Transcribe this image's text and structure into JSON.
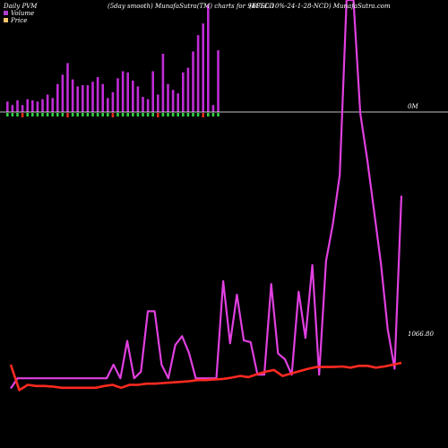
{
  "header": {
    "left": "Daily PVM",
    "middle": "(5day smooth) MunafaSutra(TM) charts for 94CLCD",
    "right": "(EFSL-10%-24-1-28-NCD) MunafaSutra.com"
  },
  "legend": {
    "volume_label": "Volume",
    "price_label": "Price",
    "volume_color": "#b03bd0",
    "price_color": "#ffc56a"
  },
  "axis": {
    "zero_label": "0M",
    "price_last_label": "1066.80"
  },
  "chart_data": {
    "type": "line",
    "series": [
      {
        "name": "Volume",
        "kind": "bar",
        "values": [
          0.45,
          0.3,
          0.5,
          0.3,
          0.55,
          0.5,
          0.45,
          0.55,
          0.75,
          0.6,
          1.2,
          1.6,
          2.1,
          1.4,
          1.1,
          1.15,
          1.15,
          1.3,
          1.5,
          1.2,
          0.6,
          0.85,
          1.45,
          1.75,
          1.7,
          1.35,
          1.1,
          0.65,
          0.55,
          1.75,
          0.75,
          2.5,
          1.2,
          0.95,
          0.8,
          1.7,
          1.9,
          2.6,
          3.3,
          3.8,
          4.6,
          0.3,
          2.65
        ]
      },
      {
        "name": "PVM (smooth)",
        "color": "#e040e0",
        "values": [
          1062.5,
          1064.2,
          1064.2,
          1064.2,
          1064.2,
          1064.2,
          1064.2,
          1064.2,
          1064.2,
          1064.2,
          1064.2,
          1064.2,
          1064.2,
          1064.2,
          1064.2,
          1066.5,
          1064.2,
          1070.5,
          1064.2,
          1065.3,
          1075.5,
          1075.5,
          1066.5,
          1064.2,
          1069.8,
          1071.3,
          1068.5,
          1064.2,
          1064.2,
          1064.2,
          1064.2,
          1080.6,
          1070.1,
          1078.3,
          1070.6,
          1070.3,
          1064.8,
          1064.8,
          1080.1,
          1068.4,
          1067.4,
          1064.8,
          1078.8,
          1071.0,
          1083.3,
          1064.8,
          1084.0,
          1090.2,
          1098.5,
          1128.0,
          1128.0,
          1108.9,
          1101.2,
          1092.5,
          1083.6,
          1072.5,
          1065.8,
          1095.0
        ]
      },
      {
        "name": "Price",
        "color": "#ff2a20",
        "values": [
          1066.5,
          1062.2,
          1063.1,
          1062.9,
          1062.9,
          1062.8,
          1062.6,
          1062.6,
          1062.6,
          1062.6,
          1062.6,
          1062.9,
          1063.1,
          1062.6,
          1063.1,
          1063.1,
          1063.3,
          1063.3,
          1063.4,
          1063.5,
          1063.6,
          1063.7,
          1063.9,
          1063.9,
          1064.0,
          1064.1,
          1064.3,
          1064.6,
          1064.4,
          1064.9,
          1065.3,
          1065.6,
          1064.6,
          1065.0,
          1065.4,
          1065.8,
          1066.1,
          1066.1,
          1066.1,
          1066.2,
          1066.0,
          1066.3,
          1066.3,
          1066.0,
          1066.2,
          1066.5,
          1066.8
        ]
      }
    ],
    "ylim": [
      1060,
      1128
    ],
    "grid": false
  }
}
